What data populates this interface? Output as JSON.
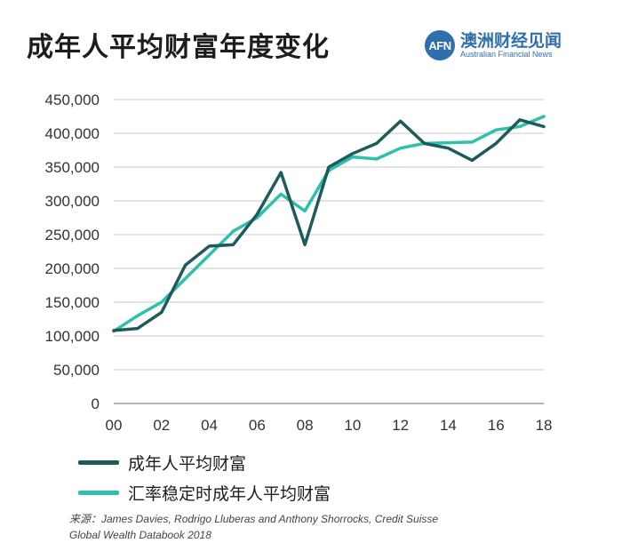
{
  "header": {
    "title": "成年人平均财富年度变化",
    "logo_mark": "AFN",
    "logo_cn": "澳洲财经见闻",
    "logo_en": "Australian Financial News"
  },
  "colors": {
    "series1": "#1e5b5c",
    "series2": "#2ebfad",
    "grid": "#c8c8c8",
    "brand": "#2f6fae"
  },
  "chart_data": {
    "type": "line",
    "title": "成年人平均财富年度变化",
    "xlabel": "",
    "ylabel": "",
    "x": [
      0,
      1,
      2,
      3,
      4,
      5,
      6,
      7,
      8,
      9,
      10,
      11,
      12,
      13,
      14,
      15,
      16,
      17,
      18
    ],
    "x_tick_labels": [
      "00",
      "02",
      "04",
      "06",
      "08",
      "10",
      "12",
      "14",
      "16",
      "18"
    ],
    "y_tick_labels": [
      "0",
      "50,000",
      "100,000",
      "150,000",
      "200,000",
      "250,000",
      "300,000",
      "350,000",
      "400,000",
      "450,000"
    ],
    "xlim": [
      0,
      18
    ],
    "ylim": [
      0,
      450000
    ],
    "grid": true,
    "legend_position": "bottom-left",
    "series": [
      {
        "name": "成年人平均财富",
        "values": [
          108000,
          111000,
          135000,
          205000,
          233000,
          235000,
          280000,
          342000,
          235000,
          350000,
          370000,
          385000,
          418000,
          385000,
          378000,
          360000,
          385000,
          420000,
          410000
        ]
      },
      {
        "name": "汇率稳定时成年人平均财富",
        "values": [
          107000,
          130000,
          150000,
          185000,
          220000,
          255000,
          275000,
          310000,
          285000,
          345000,
          365000,
          362000,
          378000,
          385000,
          386000,
          387000,
          405000,
          410000,
          425000
        ]
      }
    ]
  },
  "source": {
    "line1": "来源：James Davies, Rodrigo Lluberas and Anthony Shorrocks, Credit Suisse",
    "line2": "Global Wealth Databook 2018"
  }
}
